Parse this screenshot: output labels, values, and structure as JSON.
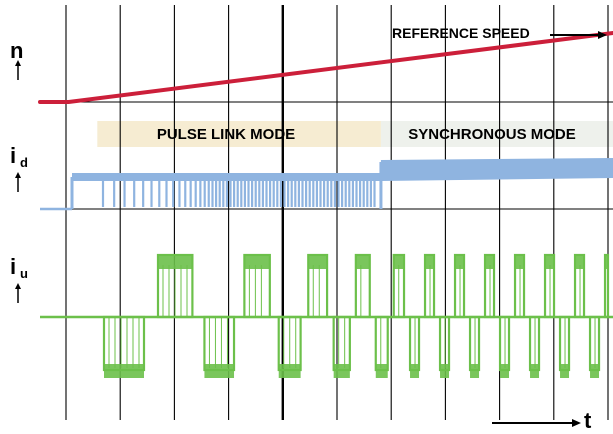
{
  "chart_data": {
    "type": "line",
    "title": "",
    "xlabel": "t",
    "grid": true,
    "vertical_divisions": 10,
    "colors": {
      "reference_speed": "#cc1f3a",
      "i_d": "#8fb4e0",
      "i_u": "#6cc04a",
      "grid": "#000000",
      "pulse_band": "#f6ecd2",
      "sync_band": "#eef1ec"
    },
    "channels": [
      {
        "id": "n",
        "label": "n",
        "subscript": "",
        "annotation": "REFERENCE SPEED"
      },
      {
        "id": "i_d",
        "label": "i",
        "subscript": "d"
      },
      {
        "id": "i_u",
        "label": "i",
        "subscript": "u"
      }
    ],
    "modes": [
      {
        "label": "PULSE LINK MODE",
        "start": 0.1,
        "end": 0.595
      },
      {
        "label": "SYNCHRONOUS MODE",
        "start": 0.595,
        "end": 1.0
      }
    ],
    "reference_speed": {
      "x": [
        0.0,
        0.05,
        1.0
      ],
      "y": [
        0.0,
        0.0,
        1.0
      ]
    }
  }
}
